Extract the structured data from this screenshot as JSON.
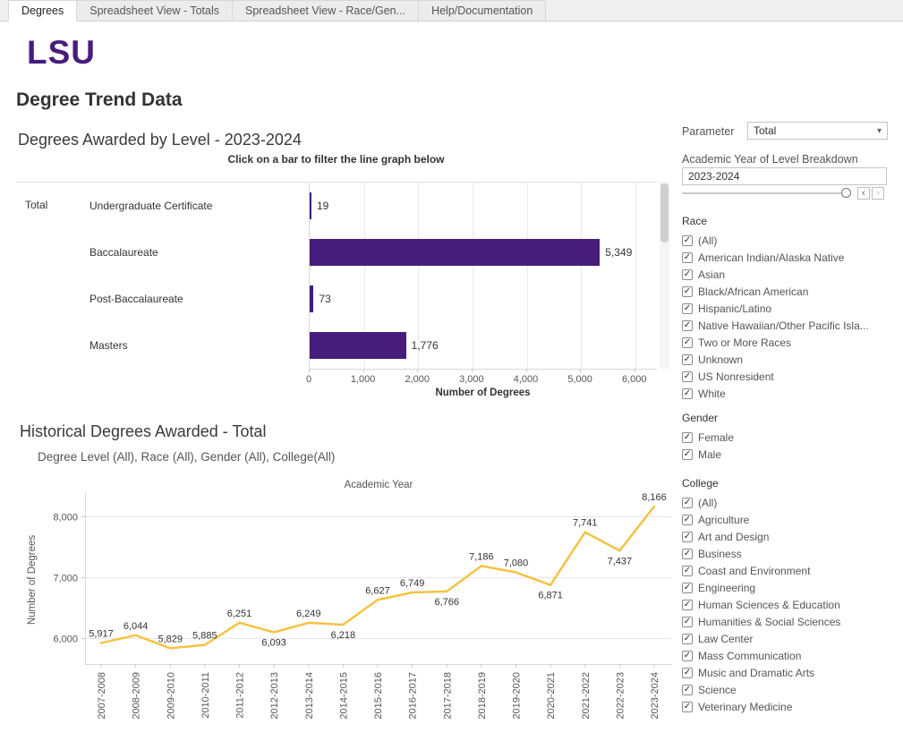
{
  "tabs": [
    {
      "label": "Degrees",
      "active": true
    },
    {
      "label": "Spreadsheet View - Totals",
      "active": false
    },
    {
      "label": "Spreadsheet View - Race/Gen...",
      "active": false
    },
    {
      "label": "Help/Documentation",
      "active": false
    }
  ],
  "logo": "LSU",
  "page_title": "Degree Trend Data",
  "bar_section": {
    "title": "Degrees Awarded by Level - 2023-2024",
    "subtitle": "Click on a bar to filter the line graph below",
    "row_header": "Total",
    "xlabel": "Number of Degrees"
  },
  "line_section": {
    "title": "Historical Degrees Awarded - Total",
    "subtitle": "Degree Level (All), Race (All), Gender (All), College(All)",
    "chart_title": "Academic Year",
    "ylabel": "Number of Degrees"
  },
  "sidebar": {
    "parameter_label": "Parameter",
    "parameter_value": "Total",
    "year_filter_label": "Academic Year of Level Breakdown",
    "year_filter_value": "2023-2024",
    "race": {
      "label": "Race",
      "options": [
        "(All)",
        "American Indian/Alaska Native",
        "Asian",
        "Black/African American",
        "Hispanic/Latino",
        "Native Hawaiian/Other Pacific Isla...",
        "Two or More Races",
        "Unknown",
        "US Nonresident",
        "White"
      ],
      "checked": true
    },
    "gender": {
      "label": "Gender",
      "options": [
        "Female",
        "Male"
      ],
      "checked": true
    },
    "college": {
      "label": "College",
      "options": [
        "(All)",
        "Agriculture",
        "Art and Design",
        "Business",
        "Coast and Environment",
        "Engineering",
        "Human Sciences & Education",
        "Humanities & Social Sciences",
        "Law Center",
        "Mass Communication",
        "Music and Dramatic Arts",
        "Science",
        "Veterinary Medicine"
      ],
      "checked": true
    }
  },
  "icons": {
    "dropdown_caret": "▾",
    "checkbox_check": "✓",
    "slider_prev": "‹",
    "slider_next": "›"
  },
  "colors": {
    "brand_purple": "#461D7C",
    "brand_gold": "#F5C342"
  },
  "chart_data": [
    {
      "type": "bar",
      "orientation": "horizontal",
      "title": "Degrees Awarded by Level - 2023-2024",
      "row_group": "Total",
      "categories": [
        "Undergraduate Certificate",
        "Baccalaureate",
        "Post-Baccalaureate",
        "Masters"
      ],
      "values": [
        19,
        5349,
        73,
        1776
      ],
      "value_labels": [
        "19",
        "5,349",
        "73",
        "1,776"
      ],
      "xlabel": "Number of Degrees",
      "xlim": [
        0,
        6400
      ],
      "xticks": [
        0,
        1000,
        2000,
        3000,
        4000,
        5000,
        6000
      ],
      "grid": true,
      "bar_color": "#461D7C"
    },
    {
      "type": "line",
      "title": "Academic Year",
      "ylabel": "Number of Degrees",
      "categories": [
        "2007-2008",
        "2008-2009",
        "2009-2010",
        "2010-2011",
        "2011-2012",
        "2012-2013",
        "2013-2014",
        "2014-2015",
        "2015-2016",
        "2016-2017",
        "2017-2018",
        "2018-2019",
        "2019-2020",
        "2020-2021",
        "2021-2022",
        "2022-2023",
        "2023-2024"
      ],
      "values": [
        5917,
        6044,
        5829,
        5885,
        6251,
        6093,
        6249,
        6218,
        6627,
        6749,
        6766,
        7186,
        7080,
        6871,
        7741,
        7437,
        8166
      ],
      "ylim": [
        5570,
        8370
      ],
      "yticks": [
        6000,
        7000,
        8000
      ],
      "grid": true,
      "line_color": "#F5C342",
      "label_positions": [
        "above",
        "above",
        "above",
        "above",
        "above",
        "below",
        "above",
        "below",
        "above",
        "above",
        "below",
        "above",
        "above",
        "below",
        "above",
        "below",
        "above"
      ]
    }
  ]
}
